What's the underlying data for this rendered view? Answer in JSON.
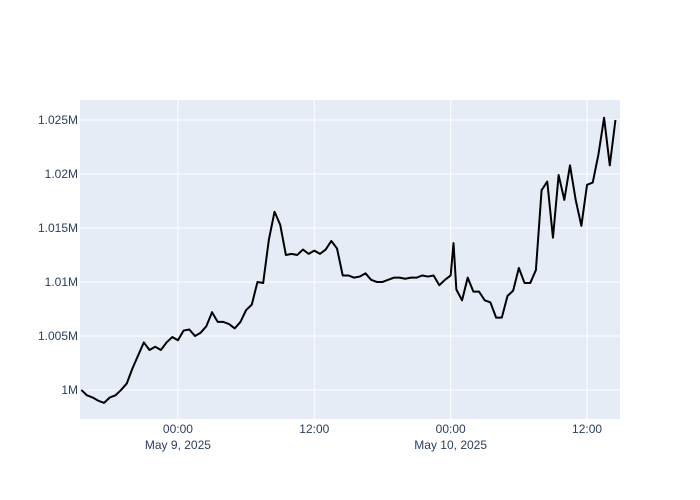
{
  "chart_data": {
    "type": "line",
    "x": [
      "2025-05-08 15:30",
      "2025-05-08 16:00",
      "2025-05-08 16:30",
      "2025-05-08 17:00",
      "2025-05-08 17:30",
      "2025-05-08 18:00",
      "2025-05-08 18:30",
      "2025-05-08 19:00",
      "2025-05-08 19:30",
      "2025-05-08 20:00",
      "2025-05-08 20:30",
      "2025-05-08 21:00",
      "2025-05-08 21:30",
      "2025-05-08 22:00",
      "2025-05-08 22:30",
      "2025-05-08 23:00",
      "2025-05-08 23:30",
      "2025-05-09 00:00",
      "2025-05-09 00:30",
      "2025-05-09 01:00",
      "2025-05-09 01:30",
      "2025-05-09 02:00",
      "2025-05-09 02:30",
      "2025-05-09 03:00",
      "2025-05-09 03:30",
      "2025-05-09 04:00",
      "2025-05-09 04:30",
      "2025-05-09 05:00",
      "2025-05-09 05:30",
      "2025-05-09 06:00",
      "2025-05-09 06:30",
      "2025-05-09 07:00",
      "2025-05-09 07:30",
      "2025-05-09 08:00",
      "2025-05-09 08:30",
      "2025-05-09 09:00",
      "2025-05-09 09:30",
      "2025-05-09 10:00",
      "2025-05-09 10:30",
      "2025-05-09 11:00",
      "2025-05-09 11:30",
      "2025-05-09 12:00",
      "2025-05-09 12:30",
      "2025-05-09 13:00",
      "2025-05-09 13:30",
      "2025-05-09 14:00",
      "2025-05-09 14:30",
      "2025-05-09 15:00",
      "2025-05-09 15:30",
      "2025-05-09 16:00",
      "2025-05-09 16:30",
      "2025-05-09 17:00",
      "2025-05-09 17:30",
      "2025-05-09 18:00",
      "2025-05-09 18:30",
      "2025-05-09 19:00",
      "2025-05-09 19:30",
      "2025-05-09 20:00",
      "2025-05-09 20:30",
      "2025-05-09 21:00",
      "2025-05-09 21:30",
      "2025-05-09 22:00",
      "2025-05-09 22:30",
      "2025-05-09 23:00",
      "2025-05-09 23:30",
      "2025-05-10 00:00",
      "2025-05-10 00:15",
      "2025-05-10 00:30",
      "2025-05-10 01:00",
      "2025-05-10 01:30",
      "2025-05-10 02:00",
      "2025-05-10 02:30",
      "2025-05-10 03:00",
      "2025-05-10 03:30",
      "2025-05-10 04:00",
      "2025-05-10 04:30",
      "2025-05-10 05:00",
      "2025-05-10 05:30",
      "2025-05-10 06:00",
      "2025-05-10 06:30",
      "2025-05-10 07:00",
      "2025-05-10 07:30",
      "2025-05-10 08:00",
      "2025-05-10 08:30",
      "2025-05-10 09:00",
      "2025-05-10 09:30",
      "2025-05-10 10:00",
      "2025-05-10 10:30",
      "2025-05-10 11:00",
      "2025-05-10 11:30",
      "2025-05-10 12:00",
      "2025-05-10 12:30",
      "2025-05-10 13:00",
      "2025-05-10 13:30",
      "2025-05-10 14:00",
      "2025-05-10 14:30"
    ],
    "series": [
      {
        "color": "#000000",
        "values": [
          1000000,
          999500,
          999300,
          999000,
          998800,
          999300,
          999500,
          1000000,
          1000600,
          1002000,
          1003200,
          1004400,
          1003700,
          1004000,
          1003700,
          1004400,
          1004900,
          1004600,
          1005500,
          1005600,
          1005000,
          1005300,
          1005900,
          1007200,
          1006300,
          1006300,
          1006100,
          1005700,
          1006300,
          1007400,
          1007900,
          1010000,
          1009900,
          1013900,
          1016500,
          1015300,
          1012500,
          1012600,
          1012500,
          1013000,
          1012600,
          1012900,
          1012600,
          1013000,
          1013800,
          1013100,
          1010600,
          1010600,
          1010400,
          1010500,
          1010800,
          1010200,
          1010000,
          1010000,
          1010200,
          1010400,
          1010400,
          1010300,
          1010400,
          1010400,
          1010600,
          1010500,
          1010600,
          1009700,
          1010200,
          1010600,
          1013600,
          1009300,
          1008300,
          1010400,
          1009100,
          1009100,
          1008300,
          1008100,
          1006700,
          1006700,
          1008700,
          1009200,
          1011300,
          1009900,
          1009900,
          1011100,
          1018500,
          1019300,
          1014100,
          1019900,
          1017600,
          1020800,
          1017600,
          1015200,
          1019000,
          1019200,
          1021800,
          1025200,
          1020800,
          1025000
        ]
      }
    ],
    "xlim": [
      "2025-05-08 15:23",
      "2025-05-10 14:54"
    ],
    "xticks": [
      {
        "value": "2025-05-09 00:00",
        "label": "00:00\nMay 9, 2025"
      },
      {
        "value": "2025-05-09 12:00",
        "label": "12:00"
      },
      {
        "value": "2025-05-10 00:00",
        "label": "00:00\nMay 10, 2025"
      },
      {
        "value": "2025-05-10 12:00",
        "label": "12:00"
      }
    ],
    "ylim": [
      997310,
      1026850
    ],
    "yticks": [
      {
        "value": 1000000,
        "label": "1M"
      },
      {
        "value": 1005000,
        "label": "1.005M"
      },
      {
        "value": 1010000,
        "label": "1.01M"
      },
      {
        "value": 1015000,
        "label": "1.015M"
      },
      {
        "value": 1020000,
        "label": "1.02M"
      },
      {
        "value": 1025000,
        "label": "1.025M"
      }
    ],
    "grid": true,
    "background": "#e5ecf6"
  }
}
